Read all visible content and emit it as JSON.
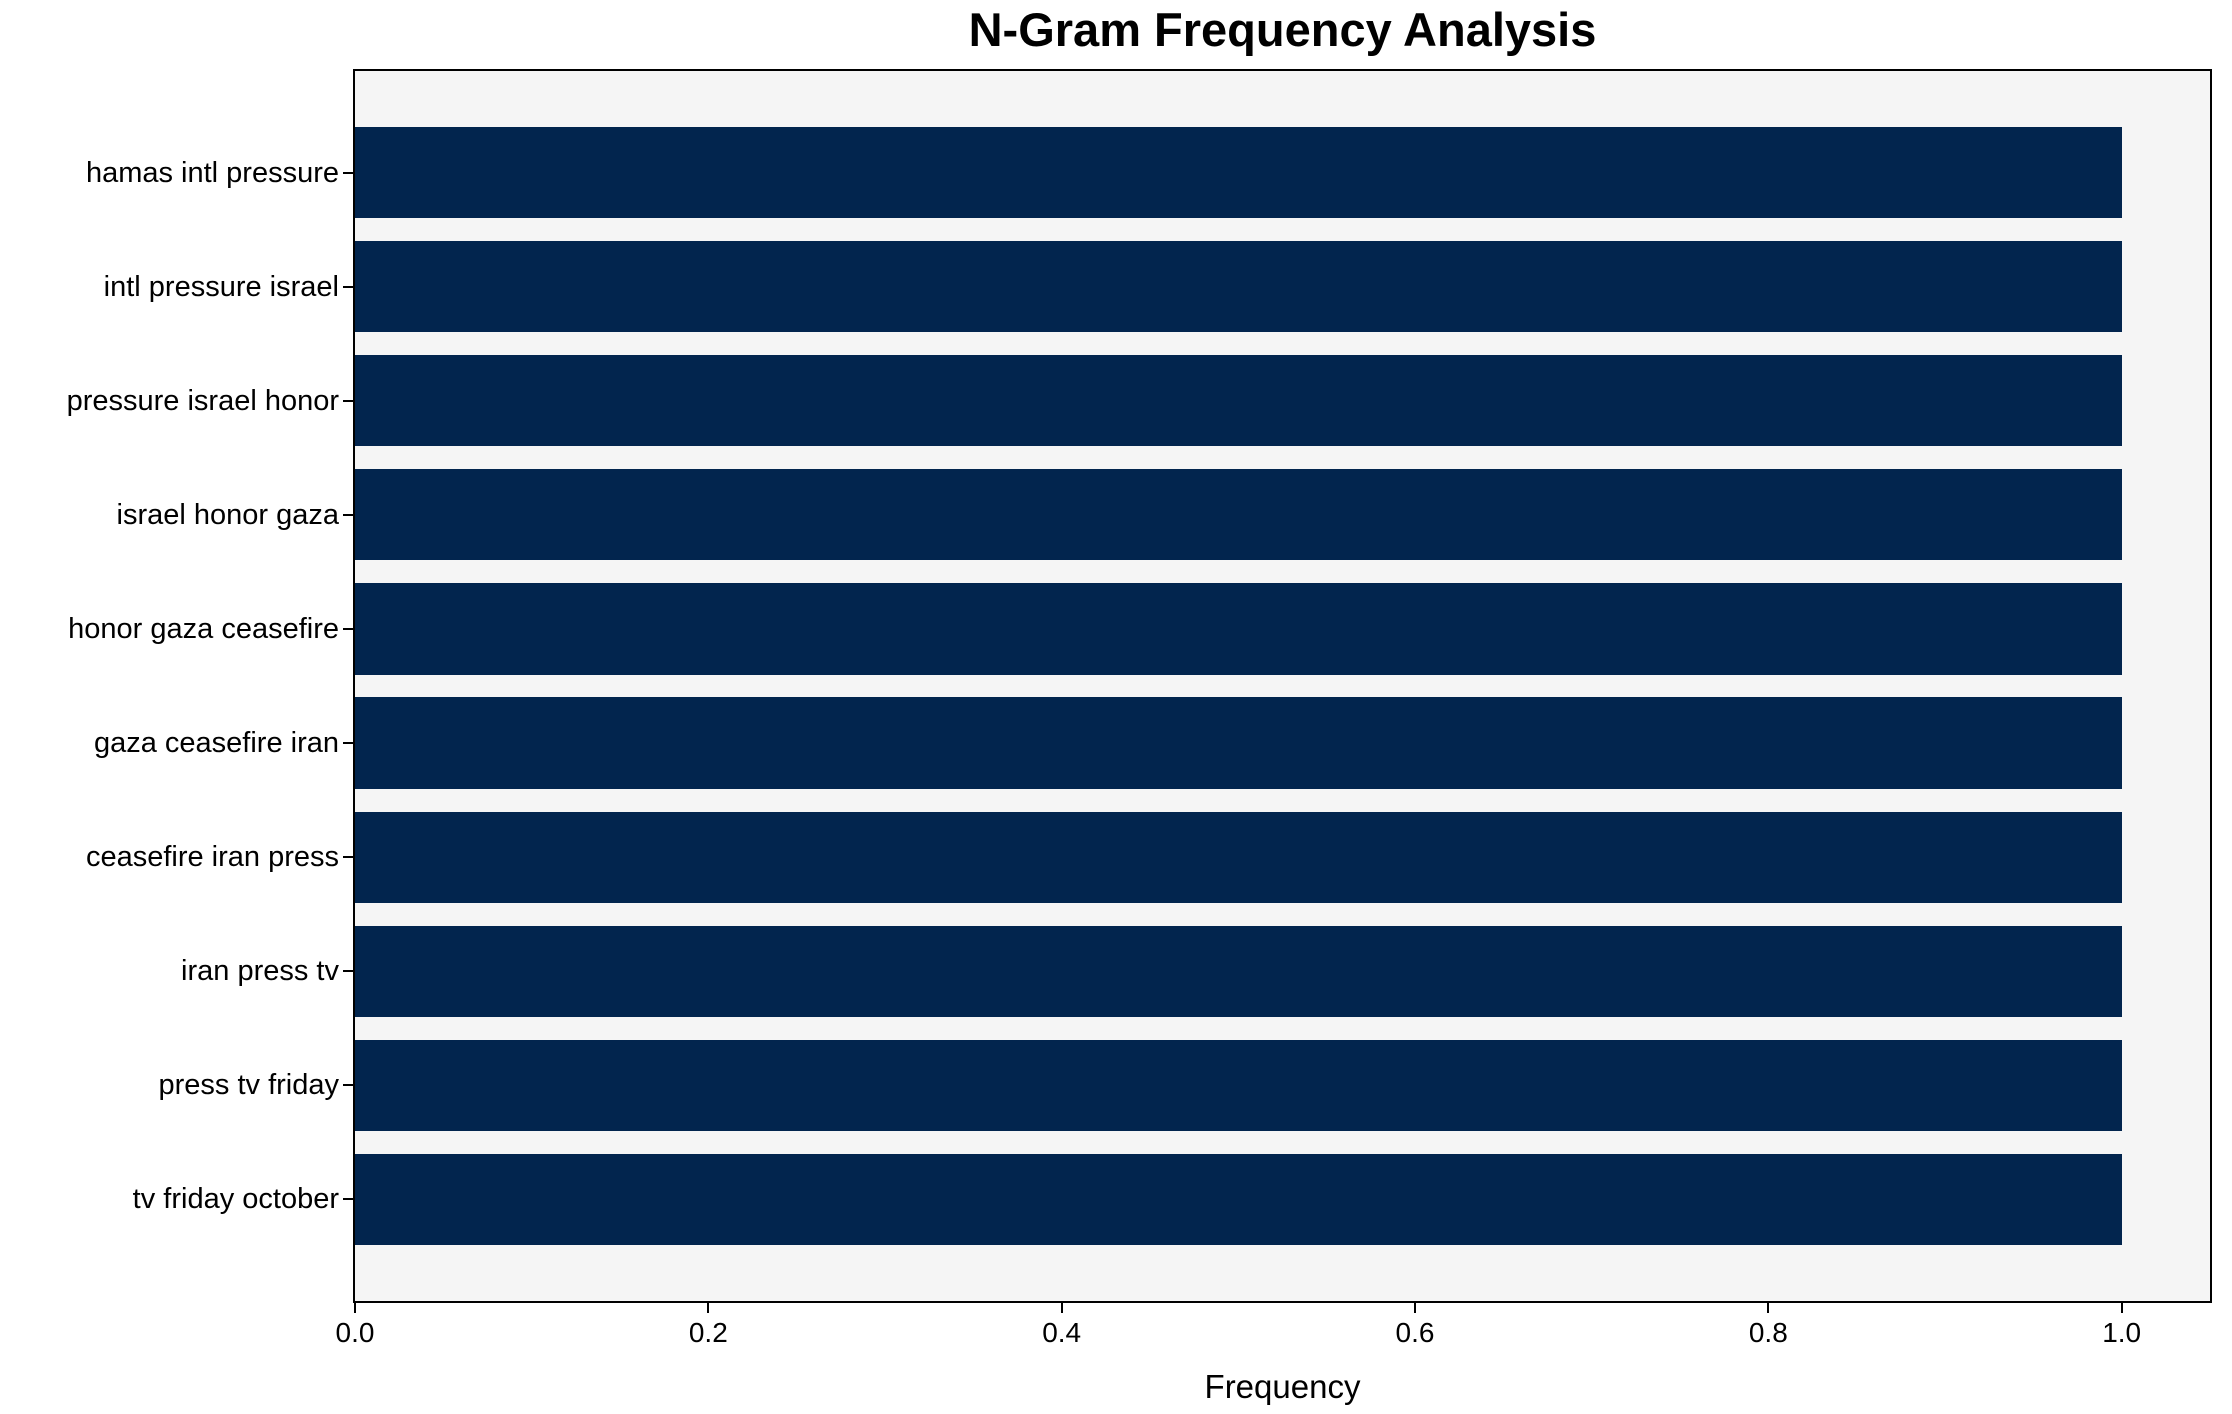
{
  "chart_data": {
    "type": "bar",
    "orientation": "horizontal",
    "title": "N-Gram Frequency Analysis",
    "xlabel": "Frequency",
    "ylabel": "",
    "categories": [
      "hamas intl pressure",
      "intl pressure israel",
      "pressure israel honor",
      "israel honor gaza",
      "honor gaza ceasefire",
      "gaza ceasefire iran",
      "ceasefire iran press",
      "iran press tv",
      "press tv friday",
      "tv friday october"
    ],
    "values": [
      1.0,
      1.0,
      1.0,
      1.0,
      1.0,
      1.0,
      1.0,
      1.0,
      1.0,
      1.0
    ],
    "xlim": [
      0,
      1.05
    ],
    "xticks": [
      0.0,
      0.2,
      0.4,
      0.6,
      0.8,
      1.0
    ],
    "xtick_labels": [
      "0.0",
      "0.2",
      "0.4",
      "0.6",
      "0.8",
      "1.0"
    ],
    "grid": false,
    "legend": "none",
    "bar_color": "#02254e",
    "plot_bg_color": "#f5f5f5",
    "figure_bg_color": "#ffffff",
    "text_color": "#000000"
  }
}
